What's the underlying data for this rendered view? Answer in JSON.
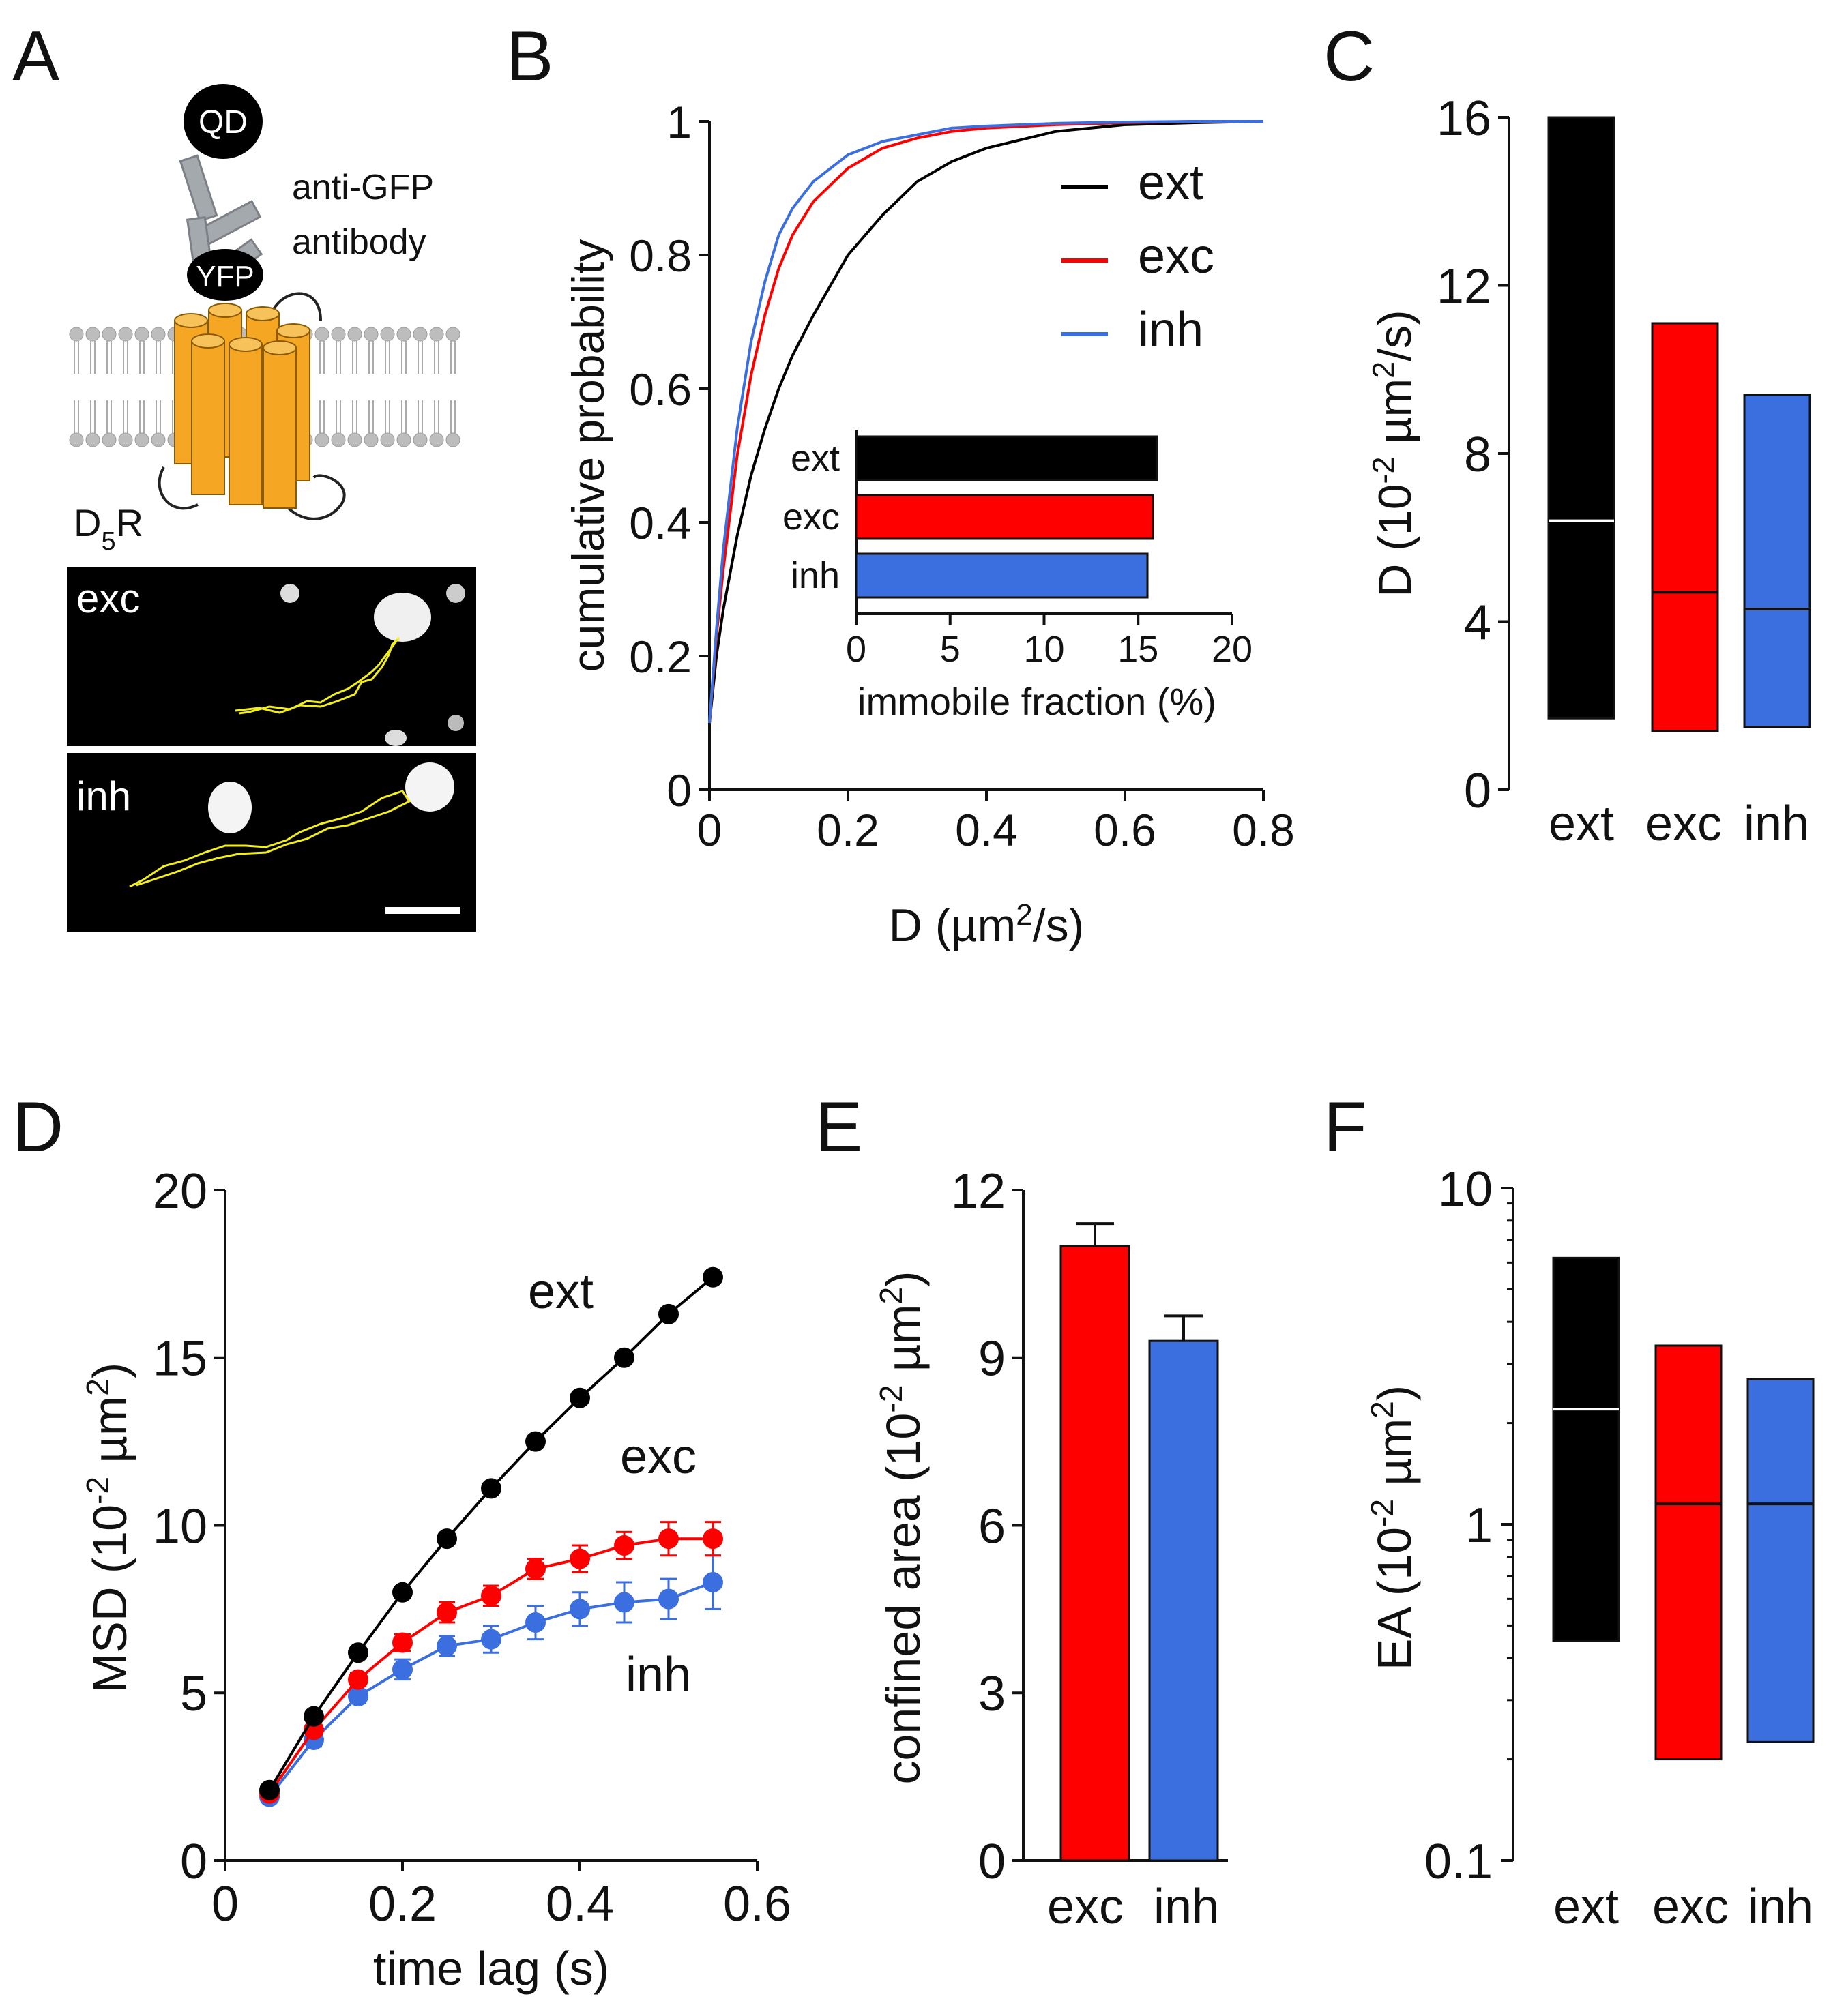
{
  "panels": {
    "A": {
      "letter": "A",
      "qd_label": "QD",
      "yfp_label": "YFP",
      "antibody_label_1": "anti-GFP",
      "antibody_label_2": "antibody",
      "receptor_label": "D",
      "receptor_sub": "5",
      "receptor_suffix": "R",
      "image_labels": [
        "exc",
        "inh"
      ],
      "colors": {
        "receptor": "#f5a623",
        "trajectory": "#f2ee1c",
        "qd": "#000000",
        "antibody": "#9aa0a6"
      }
    },
    "B_letter": "B",
    "C_letter": "C",
    "D_letter": "D",
    "E_letter": "E",
    "F_letter": "F"
  },
  "colors": {
    "ext": "#000000",
    "exc": "#ff0000",
    "inh": "#3b6fe0"
  },
  "chart_data": [
    {
      "id": "B",
      "type": "line",
      "xlabel": "D (µm²/s)",
      "xlabel_main": "D (µm",
      "xlabel_sup": "2",
      "xlabel_end": "/s)",
      "ylabel": "cumulative probability",
      "xlim": [
        0,
        0.8
      ],
      "ylim": [
        0,
        1
      ],
      "xticks": [
        "0",
        "0.2",
        "0.4",
        "0.6",
        "0.8"
      ],
      "yticks": [
        "0",
        "0.2",
        "0.4",
        "0.6",
        "0.8",
        "1"
      ],
      "legend": [
        "ext",
        "exc",
        "inh"
      ],
      "series": [
        {
          "name": "ext",
          "x": [
            0,
            0.01,
            0.02,
            0.04,
            0.06,
            0.08,
            0.1,
            0.12,
            0.15,
            0.2,
            0.25,
            0.3,
            0.35,
            0.4,
            0.5,
            0.6,
            0.7,
            0.8
          ],
          "y": [
            0.1,
            0.2,
            0.27,
            0.38,
            0.47,
            0.54,
            0.6,
            0.65,
            0.71,
            0.8,
            0.86,
            0.91,
            0.94,
            0.96,
            0.985,
            0.995,
            0.998,
            1.0
          ]
        },
        {
          "name": "exc",
          "x": [
            0,
            0.01,
            0.02,
            0.04,
            0.06,
            0.08,
            0.1,
            0.12,
            0.15,
            0.2,
            0.25,
            0.3,
            0.35,
            0.4,
            0.5,
            0.6,
            0.7,
            0.8
          ],
          "y": [
            0.1,
            0.23,
            0.33,
            0.5,
            0.62,
            0.71,
            0.78,
            0.83,
            0.88,
            0.93,
            0.96,
            0.975,
            0.985,
            0.99,
            0.995,
            0.998,
            1.0,
            1.0
          ]
        },
        {
          "name": "inh",
          "x": [
            0,
            0.01,
            0.02,
            0.04,
            0.06,
            0.08,
            0.1,
            0.12,
            0.15,
            0.2,
            0.25,
            0.3,
            0.35,
            0.4,
            0.5,
            0.6,
            0.7,
            0.8
          ],
          "y": [
            0.1,
            0.24,
            0.36,
            0.54,
            0.67,
            0.76,
            0.83,
            0.87,
            0.91,
            0.95,
            0.97,
            0.98,
            0.99,
            0.993,
            0.997,
            0.999,
            1.0,
            1.0
          ]
        }
      ],
      "inset": {
        "type": "bar",
        "orientation": "horizontal",
        "categories": [
          "ext",
          "exc",
          "inh"
        ],
        "values": [
          16,
          15.8,
          15.5
        ],
        "xlabel": "immobile fraction (%)",
        "xlim": [
          0,
          20
        ],
        "xticks": [
          "0",
          "5",
          "10",
          "15",
          "20"
        ]
      }
    },
    {
      "id": "C",
      "type": "bar",
      "style": "floating-box",
      "categories": [
        "ext",
        "exc",
        "inh"
      ],
      "boxes": [
        {
          "name": "ext",
          "low": 1.7,
          "high": 16.0,
          "median": 6.4
        },
        {
          "name": "exc",
          "low": 1.4,
          "high": 11.1,
          "median": 4.7
        },
        {
          "name": "inh",
          "low": 1.5,
          "high": 9.4,
          "median": 4.3
        }
      ],
      "ylabel_pre": "D (10",
      "ylabel_sup1": "-2",
      "ylabel_mid": " µm",
      "ylabel_sup2": "2",
      "ylabel_end": "/s)",
      "ylim": [
        0,
        16
      ],
      "yticks": [
        "0",
        "4",
        "8",
        "12",
        "16"
      ]
    },
    {
      "id": "D",
      "type": "line",
      "xlabel": "time lag (s)",
      "ylabel_pre": "MSD (10",
      "ylabel_sup1": "-2",
      "ylabel_mid": " µm",
      "ylabel_sup2": "2",
      "ylabel_end": ")",
      "xlim": [
        0,
        0.6
      ],
      "ylim": [
        0,
        20
      ],
      "xticks": [
        "0",
        "0.2",
        "0.4",
        "0.6"
      ],
      "yticks": [
        "0",
        "5",
        "10",
        "15",
        "20"
      ],
      "series_labels": [
        "ext",
        "exc",
        "inh"
      ],
      "series": [
        {
          "name": "ext",
          "x": [
            0.05,
            0.1,
            0.15,
            0.2,
            0.25,
            0.3,
            0.35,
            0.4,
            0.45,
            0.5,
            0.55
          ],
          "y": [
            2.1,
            4.3,
            6.2,
            8.0,
            9.6,
            11.1,
            12.5,
            13.8,
            15.0,
            16.3,
            17.4
          ],
          "err": [
            0.1,
            0.1,
            0.1,
            0.1,
            0.1,
            0.1,
            0.1,
            0.1,
            0.1,
            0.1,
            0.1
          ]
        },
        {
          "name": "exc",
          "x": [
            0.05,
            0.1,
            0.15,
            0.2,
            0.25,
            0.3,
            0.35,
            0.4,
            0.45,
            0.5,
            0.55
          ],
          "y": [
            2.0,
            3.9,
            5.4,
            6.5,
            7.4,
            7.9,
            8.7,
            9.0,
            9.4,
            9.6,
            9.6
          ],
          "err": [
            0.1,
            0.15,
            0.2,
            0.25,
            0.3,
            0.3,
            0.3,
            0.4,
            0.4,
            0.5,
            0.5
          ]
        },
        {
          "name": "inh",
          "x": [
            0.05,
            0.1,
            0.15,
            0.2,
            0.25,
            0.3,
            0.35,
            0.4,
            0.45,
            0.5,
            0.55
          ],
          "y": [
            1.9,
            3.6,
            4.9,
            5.7,
            6.4,
            6.6,
            7.1,
            7.5,
            7.7,
            7.8,
            8.3
          ],
          "err": [
            0.1,
            0.2,
            0.2,
            0.3,
            0.3,
            0.4,
            0.5,
            0.5,
            0.6,
            0.6,
            0.8
          ]
        }
      ]
    },
    {
      "id": "E",
      "type": "bar",
      "categories": [
        "exc",
        "inh"
      ],
      "values": [
        11.0,
        9.3
      ],
      "errors": [
        0.4,
        0.45
      ],
      "ylabel_pre": "confined area (10",
      "ylabel_sup1": "-2",
      "ylabel_mid": " µm",
      "ylabel_sup2": "2",
      "ylabel_end": ")",
      "ylim": [
        0,
        12
      ],
      "yticks": [
        "0",
        "3",
        "6",
        "9",
        "12"
      ]
    },
    {
      "id": "F",
      "type": "bar",
      "style": "floating-box",
      "scale": "log",
      "categories": [
        "ext",
        "exc",
        "inh"
      ],
      "boxes": [
        {
          "name": "ext",
          "low": 0.45,
          "high": 6.2,
          "median": 2.2
        },
        {
          "name": "exc",
          "low": 0.2,
          "high": 3.4,
          "median": 1.15
        },
        {
          "name": "inh",
          "low": 0.225,
          "high": 2.7,
          "median": 1.15
        }
      ],
      "ylabel_pre": "EA (10",
      "ylabel_sup1": "-2",
      "ylabel_mid": " µm",
      "ylabel_sup2": "2",
      "ylabel_end": ")",
      "ylim": [
        0.1,
        10
      ],
      "yticks": [
        "0.1",
        "1",
        "10"
      ]
    }
  ]
}
